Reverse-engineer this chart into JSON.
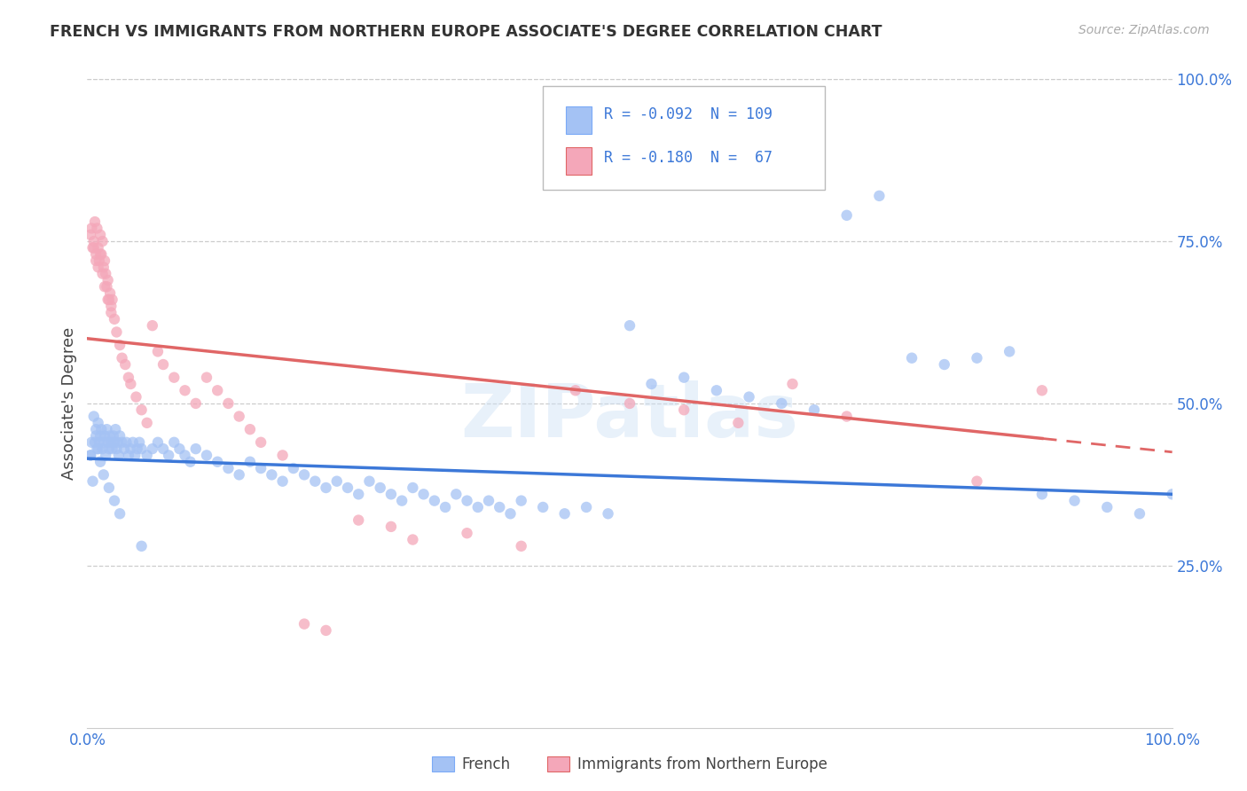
{
  "title": "FRENCH VS IMMIGRANTS FROM NORTHERN EUROPE ASSOCIATE'S DEGREE CORRELATION CHART",
  "source_text": "Source: ZipAtlas.com",
  "ylabel": "Associate's Degree",
  "watermark": "ZIPatlas",
  "legend_labels": [
    "French",
    "Immigrants from Northern Europe"
  ],
  "color_blue": "#a4c2f4",
  "color_pink": "#f4a7b9",
  "color_blue_line": "#3c78d8",
  "color_pink_line": "#e06666",
  "r_blue": -0.092,
  "n_blue": 109,
  "r_pink": -0.18,
  "n_pink": 67,
  "xlim": [
    0,
    1
  ],
  "ylim": [
    0,
    1
  ],
  "xtick_labels": [
    "0.0%",
    "",
    "",
    "",
    "100.0%"
  ],
  "xtick_positions": [
    0,
    0.25,
    0.5,
    0.75,
    1.0
  ],
  "ytick_labels_right": [
    "25.0%",
    "50.0%",
    "75.0%",
    "100.0%"
  ],
  "ytick_positions_right": [
    0.25,
    0.5,
    0.75,
    1.0
  ],
  "blue_line_y0": 0.415,
  "blue_line_y1": 0.36,
  "pink_line_y0": 0.6,
  "pink_line_y1": 0.425,
  "pink_line_x_end": 0.88,
  "blue_x": [
    0.003,
    0.005,
    0.006,
    0.007,
    0.008,
    0.009,
    0.01,
    0.011,
    0.012,
    0.013,
    0.014,
    0.015,
    0.016,
    0.017,
    0.018,
    0.019,
    0.02,
    0.021,
    0.022,
    0.023,
    0.024,
    0.025,
    0.026,
    0.027,
    0.028,
    0.029,
    0.03,
    0.032,
    0.034,
    0.036,
    0.038,
    0.04,
    0.042,
    0.044,
    0.046,
    0.048,
    0.05,
    0.055,
    0.06,
    0.065,
    0.07,
    0.075,
    0.08,
    0.085,
    0.09,
    0.095,
    0.1,
    0.11,
    0.12,
    0.13,
    0.14,
    0.15,
    0.16,
    0.17,
    0.18,
    0.19,
    0.2,
    0.21,
    0.22,
    0.23,
    0.24,
    0.25,
    0.26,
    0.27,
    0.28,
    0.29,
    0.3,
    0.31,
    0.32,
    0.33,
    0.34,
    0.35,
    0.36,
    0.37,
    0.38,
    0.39,
    0.4,
    0.42,
    0.44,
    0.46,
    0.48,
    0.5,
    0.52,
    0.55,
    0.58,
    0.61,
    0.64,
    0.67,
    0.7,
    0.73,
    0.76,
    0.79,
    0.82,
    0.85,
    0.88,
    0.91,
    0.94,
    0.97,
    1.0,
    0.003,
    0.004,
    0.008,
    0.01,
    0.012,
    0.015,
    0.02,
    0.025,
    0.03,
    0.05
  ],
  "blue_y": [
    0.42,
    0.38,
    0.48,
    0.44,
    0.46,
    0.43,
    0.47,
    0.44,
    0.45,
    0.46,
    0.43,
    0.44,
    0.45,
    0.42,
    0.46,
    0.44,
    0.43,
    0.45,
    0.44,
    0.43,
    0.45,
    0.44,
    0.46,
    0.43,
    0.44,
    0.42,
    0.45,
    0.44,
    0.43,
    0.44,
    0.42,
    0.43,
    0.44,
    0.42,
    0.43,
    0.44,
    0.43,
    0.42,
    0.43,
    0.44,
    0.43,
    0.42,
    0.44,
    0.43,
    0.42,
    0.41,
    0.43,
    0.42,
    0.41,
    0.4,
    0.39,
    0.41,
    0.4,
    0.39,
    0.38,
    0.4,
    0.39,
    0.38,
    0.37,
    0.38,
    0.37,
    0.36,
    0.38,
    0.37,
    0.36,
    0.35,
    0.37,
    0.36,
    0.35,
    0.34,
    0.36,
    0.35,
    0.34,
    0.35,
    0.34,
    0.33,
    0.35,
    0.34,
    0.33,
    0.34,
    0.33,
    0.62,
    0.53,
    0.54,
    0.52,
    0.51,
    0.5,
    0.49,
    0.79,
    0.82,
    0.57,
    0.56,
    0.57,
    0.58,
    0.36,
    0.35,
    0.34,
    0.33,
    0.36,
    0.42,
    0.44,
    0.45,
    0.43,
    0.41,
    0.39,
    0.37,
    0.35,
    0.33,
    0.28
  ],
  "pink_x": [
    0.003,
    0.005,
    0.006,
    0.007,
    0.008,
    0.009,
    0.01,
    0.011,
    0.012,
    0.013,
    0.014,
    0.015,
    0.016,
    0.017,
    0.018,
    0.019,
    0.02,
    0.021,
    0.022,
    0.023,
    0.025,
    0.027,
    0.03,
    0.032,
    0.035,
    0.038,
    0.04,
    0.045,
    0.05,
    0.055,
    0.06,
    0.065,
    0.07,
    0.08,
    0.09,
    0.1,
    0.11,
    0.12,
    0.13,
    0.14,
    0.15,
    0.16,
    0.18,
    0.2,
    0.22,
    0.25,
    0.28,
    0.3,
    0.35,
    0.4,
    0.45,
    0.5,
    0.55,
    0.6,
    0.65,
    0.7,
    0.82,
    0.88,
    0.004,
    0.006,
    0.008,
    0.01,
    0.012,
    0.014,
    0.016,
    0.019,
    0.022
  ],
  "pink_y": [
    0.76,
    0.74,
    0.75,
    0.78,
    0.73,
    0.77,
    0.74,
    0.72,
    0.76,
    0.73,
    0.75,
    0.71,
    0.72,
    0.7,
    0.68,
    0.69,
    0.66,
    0.67,
    0.65,
    0.66,
    0.63,
    0.61,
    0.59,
    0.57,
    0.56,
    0.54,
    0.53,
    0.51,
    0.49,
    0.47,
    0.62,
    0.58,
    0.56,
    0.54,
    0.52,
    0.5,
    0.54,
    0.52,
    0.5,
    0.48,
    0.46,
    0.44,
    0.42,
    0.16,
    0.15,
    0.32,
    0.31,
    0.29,
    0.3,
    0.28,
    0.52,
    0.5,
    0.49,
    0.47,
    0.53,
    0.48,
    0.38,
    0.52,
    0.77,
    0.74,
    0.72,
    0.71,
    0.73,
    0.7,
    0.68,
    0.66,
    0.64
  ]
}
